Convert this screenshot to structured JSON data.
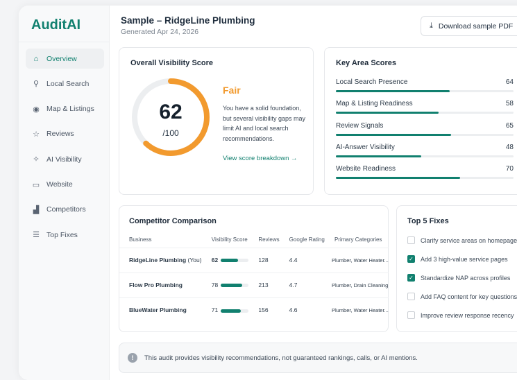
{
  "app": {
    "logo": "AuditAI"
  },
  "sidebar": {
    "items": [
      {
        "label": "Overview",
        "icon": "home-check-icon",
        "glyph": "⌂",
        "active": true
      },
      {
        "label": "Local Search",
        "icon": "search-icon",
        "glyph": "⚲"
      },
      {
        "label": "Map & Listings",
        "icon": "map-pin-icon",
        "glyph": "◉"
      },
      {
        "label": "Reviews",
        "icon": "star-icon",
        "glyph": "☆"
      },
      {
        "label": "AI Visibility",
        "icon": "sparkle-icon",
        "glyph": "✧"
      },
      {
        "label": "Website",
        "icon": "browser-icon",
        "glyph": "▭"
      },
      {
        "label": "Competitors",
        "icon": "chart-icon",
        "glyph": "▟"
      },
      {
        "label": "Top Fixes",
        "icon": "list-icon",
        "glyph": "☰"
      }
    ]
  },
  "header": {
    "title": "Sample – RidgeLine Plumbing",
    "subtitle": "Generated Apr 24, 2026",
    "download_label": "Download sample PDF"
  },
  "score": {
    "title": "Overall Visibility Score",
    "value": "62",
    "max": "/100",
    "fraction": 0.62,
    "rating": "Fair",
    "description": "You have a solid foundation, but several visibility gaps may limit AI and local search recommendations.",
    "link": "View score breakdown →",
    "color": "#f29a2e"
  },
  "key_areas": {
    "title": "Key Area Scores",
    "items": [
      {
        "label": "Local Search Presence",
        "value": "64"
      },
      {
        "label": "Map & Listing Readiness",
        "value": "58"
      },
      {
        "label": "Review Signals",
        "value": "65"
      },
      {
        "label": "AI-Answer Visibility",
        "value": "48"
      },
      {
        "label": "Website Readiness",
        "value": "70"
      }
    ]
  },
  "competitors": {
    "title": "Competitor Comparison",
    "headers": [
      "Business",
      "Visibility Score",
      "Reviews",
      "Google Rating",
      "Primary Categories"
    ],
    "rows": [
      {
        "name": "RidgeLine Plumbing",
        "tag": " (You)",
        "score": "62",
        "reviews": "128",
        "rating": "4.4",
        "categories": "Plumber, Water Heater..."
      },
      {
        "name": "Flow Pro Plumbing",
        "tag": "",
        "score": "78",
        "reviews": "213",
        "rating": "4.7",
        "categories": "Plumber, Drain Cleaning"
      },
      {
        "name": "BlueWater Plumbing",
        "tag": "",
        "score": "71",
        "reviews": "156",
        "rating": "4.6",
        "categories": "Plumber, Water Heater..."
      }
    ]
  },
  "fixes": {
    "title": "Top 5 Fixes",
    "items": [
      {
        "label": "Clarify service areas on homepage",
        "checked": false
      },
      {
        "label": "Add 3 high-value service pages",
        "checked": true
      },
      {
        "label": "Standardize NAP across profiles",
        "checked": true
      },
      {
        "label": "Add FAQ content for key questions",
        "checked": false
      },
      {
        "label": "Improve review response recency",
        "checked": false
      }
    ]
  },
  "disclaimer": "This audit provides visibility recommendations, not guaranteed rankings, calls, or AI mentions.",
  "colors": {
    "accent": "#11806f",
    "score": "#f29a2e"
  }
}
